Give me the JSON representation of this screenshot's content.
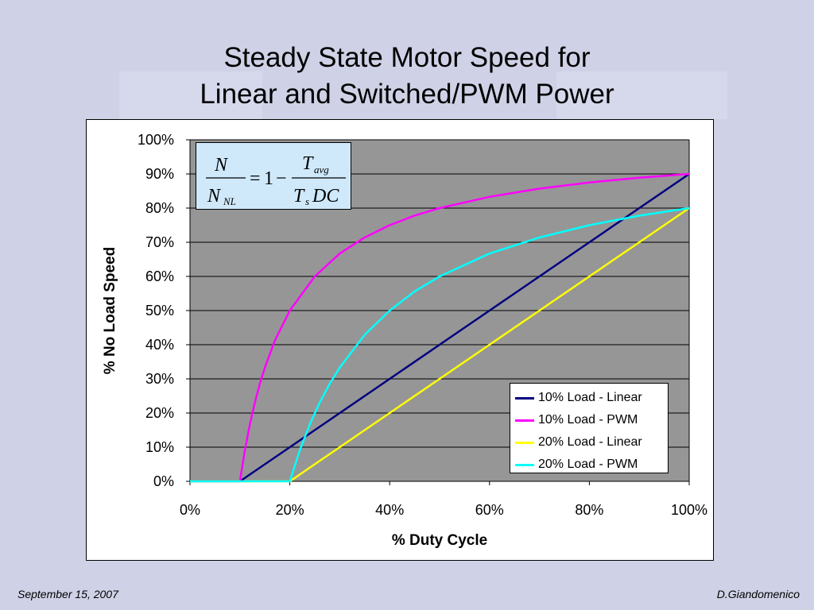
{
  "title": {
    "line1": "Steady State Motor Speed for",
    "line2": "Linear and Switched/PWM Power"
  },
  "footer": {
    "date": "September 15, 2007",
    "author": "D.Giandomenico"
  },
  "formula": {
    "lhs_num": "N",
    "lhs_den_main": "N",
    "lhs_den_sub": "NL",
    "eq": "=",
    "one": "1",
    "minus": "−",
    "rhs_num_main": "T",
    "rhs_num_sub": "avg",
    "rhs_den_main": "T",
    "rhs_den_sub": "s",
    "rhs_den_rest": "DC"
  },
  "colors": {
    "plot_bg": "#969696",
    "gridline": "#000000",
    "linear10": "#000080",
    "pwm10": "#ff00ff",
    "linear20": "#ffff00",
    "pwm20": "#00ffff"
  },
  "chart_data": {
    "type": "line",
    "title": "",
    "xlabel": "% Duty Cycle",
    "ylabel": "% No Load Speed",
    "xlim": [
      0,
      100
    ],
    "ylim": [
      0,
      100
    ],
    "xticks": [
      "0%",
      "20%",
      "40%",
      "60%",
      "80%",
      "100%"
    ],
    "yticks": [
      "0%",
      "10%",
      "20%",
      "30%",
      "40%",
      "50%",
      "60%",
      "70%",
      "80%",
      "90%",
      "100%"
    ],
    "grid": true,
    "legend_position": "bottom-right",
    "series": [
      {
        "name": "10% Load - Linear",
        "color": "#000080",
        "x": [
          0,
          10,
          20,
          30,
          40,
          50,
          60,
          70,
          80,
          90,
          100
        ],
        "y": [
          0,
          0,
          10,
          20,
          30,
          40,
          50,
          60,
          70,
          80,
          90
        ]
      },
      {
        "name": "10% Load - PWM",
        "color": "#ff00ff",
        "x": [
          0,
          10,
          11,
          12,
          13,
          14,
          15,
          17,
          20,
          25,
          30,
          35,
          40,
          45,
          50,
          60,
          70,
          80,
          90,
          100
        ],
        "y": [
          0,
          0,
          9.1,
          16.7,
          23.1,
          28.6,
          33.3,
          41.2,
          50,
          60,
          66.7,
          71.4,
          75,
          77.8,
          80,
          83.3,
          85.7,
          87.5,
          88.9,
          90
        ]
      },
      {
        "name": "20% Load - Linear",
        "color": "#ffff00",
        "x": [
          0,
          20,
          30,
          40,
          50,
          60,
          70,
          80,
          90,
          100
        ],
        "y": [
          0,
          0,
          10,
          20,
          30,
          40,
          50,
          60,
          70,
          80
        ]
      },
      {
        "name": "20% Load - PWM",
        "color": "#00ffff",
        "x": [
          0,
          20,
          22,
          24,
          26,
          28,
          30,
          35,
          40,
          45,
          50,
          60,
          70,
          80,
          90,
          100
        ],
        "y": [
          0,
          0,
          9.1,
          16.7,
          23.1,
          28.6,
          33.3,
          42.9,
          50,
          55.6,
          60,
          66.7,
          71.4,
          75,
          77.8,
          80
        ]
      }
    ]
  }
}
